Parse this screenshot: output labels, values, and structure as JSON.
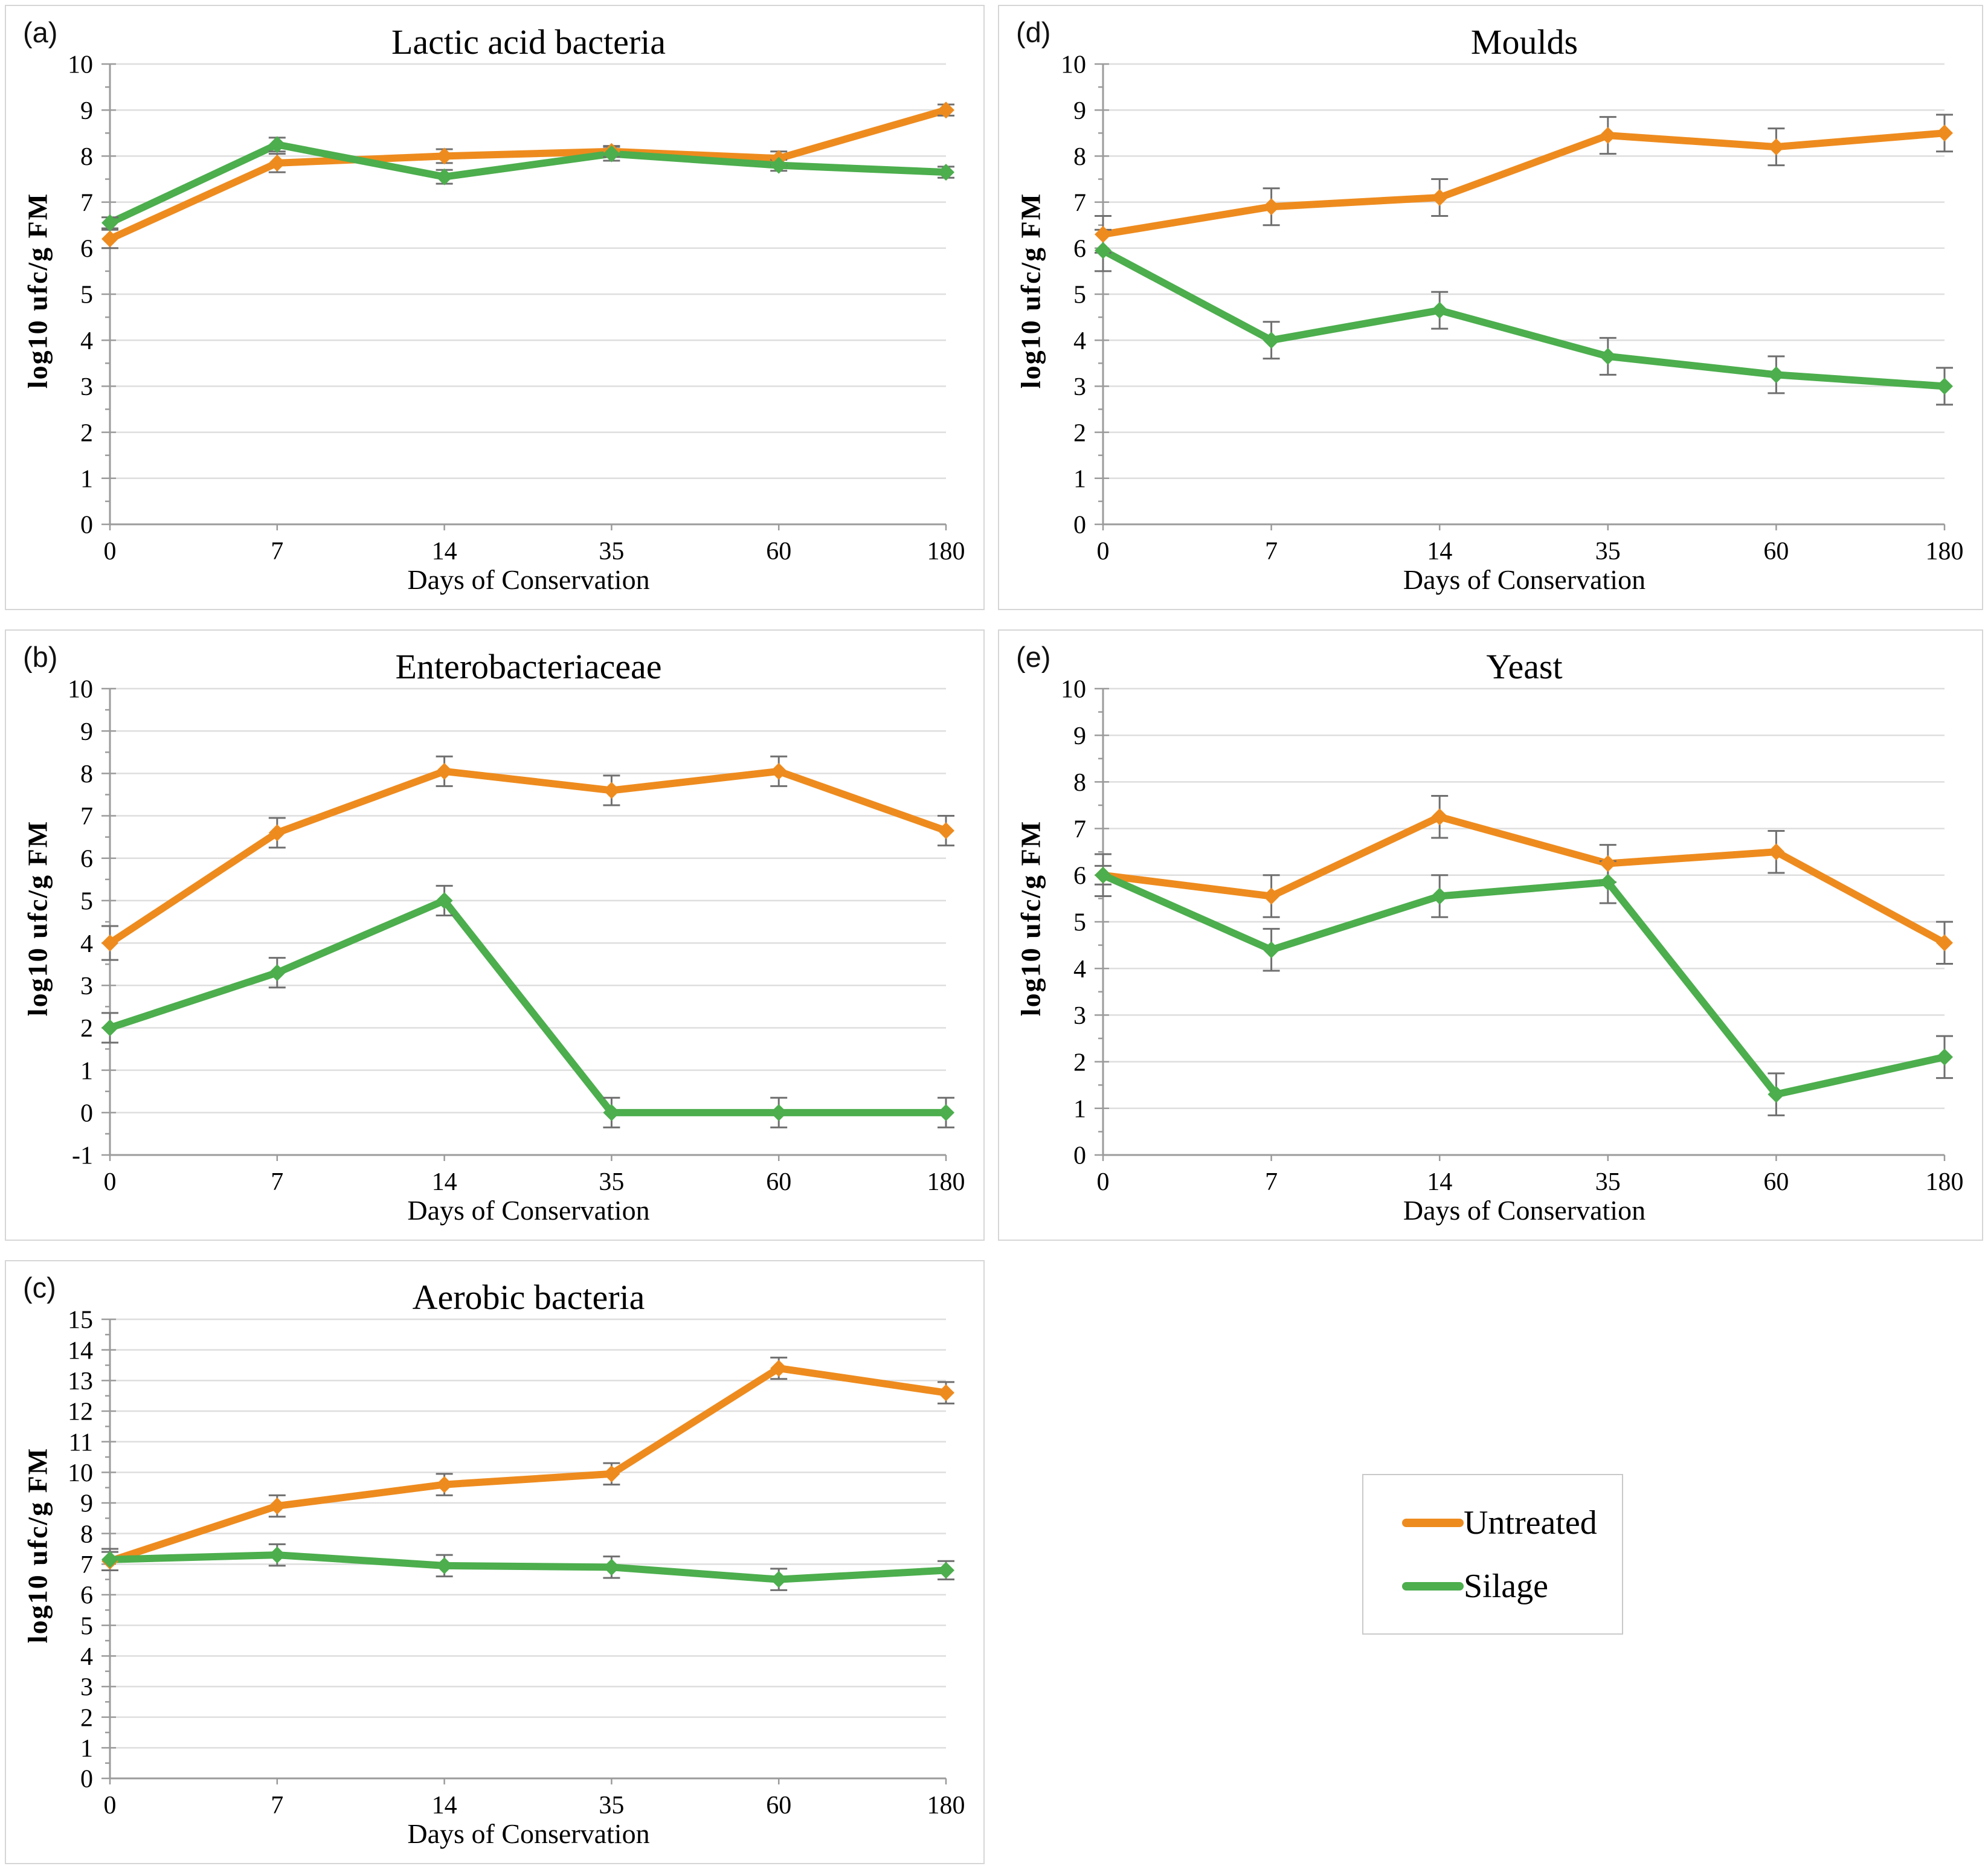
{
  "figure": {
    "colors": {
      "grid": "#dedede",
      "axis": "#9b9b9b",
      "error_bar": "#6f6f6f"
    },
    "legend": {
      "position": "bottom-right",
      "items": [
        {
          "label": "Untreated",
          "color": "#EE8B1E"
        },
        {
          "label": "Silage",
          "color": "#4CAE4D"
        }
      ]
    }
  },
  "chart_data": [
    {
      "id": "a",
      "panel_label": "(a)",
      "title": "Lactic acid bacteria",
      "type": "line",
      "xlabel": "Days of Conservation",
      "ylabel": "log10 ufc/g FM",
      "categories": [
        "0",
        "7",
        "14",
        "35",
        "60",
        "180"
      ],
      "ylim": [
        0,
        10
      ],
      "yticks": [
        0,
        1,
        2,
        3,
        4,
        5,
        6,
        7,
        8,
        9,
        10
      ],
      "grid": true,
      "marker": "diamond",
      "series": [
        {
          "name": "Untreated",
          "color": "#EE8B1E",
          "values": [
            6.2,
            7.85,
            8.0,
            8.1,
            7.95,
            9.0
          ],
          "errors": [
            0.2,
            0.2,
            0.15,
            0.12,
            0.15,
            0.12
          ]
        },
        {
          "name": "Silage",
          "color": "#4CAE4D",
          "values": [
            6.55,
            8.25,
            7.55,
            8.05,
            7.8,
            7.65
          ],
          "errors": [
            0.12,
            0.15,
            0.15,
            0.15,
            0.12,
            0.12
          ]
        }
      ]
    },
    {
      "id": "b",
      "panel_label": "(b)",
      "title": "Enterobacteriaceae",
      "type": "line",
      "xlabel": "Days of Conservation",
      "ylabel": "log10 ufc/g FM",
      "categories": [
        "0",
        "7",
        "14",
        "35",
        "60",
        "180"
      ],
      "ylim": [
        -1,
        10
      ],
      "yticks": [
        -1,
        0,
        1,
        2,
        3,
        4,
        5,
        6,
        7,
        8,
        9,
        10
      ],
      "grid": true,
      "marker": "diamond",
      "series": [
        {
          "name": "Untreated",
          "color": "#EE8B1E",
          "values": [
            4.0,
            6.6,
            8.05,
            7.6,
            8.05,
            6.65
          ],
          "errors": [
            0.4,
            0.35,
            0.35,
            0.35,
            0.35,
            0.35
          ]
        },
        {
          "name": "Silage",
          "color": "#4CAE4D",
          "values": [
            2.0,
            3.3,
            5.0,
            0.0,
            0.0,
            0.0
          ],
          "errors": [
            0.35,
            0.35,
            0.35,
            0.35,
            0.35,
            0.35
          ]
        }
      ]
    },
    {
      "id": "c",
      "panel_label": "(c)",
      "title": "Aerobic bacteria",
      "type": "line",
      "xlabel": "Days of Conservation",
      "ylabel": "log10 ufc/g FM",
      "categories": [
        "0",
        "7",
        "14",
        "35",
        "60",
        "180"
      ],
      "ylim": [
        0,
        15
      ],
      "yticks": [
        0,
        1,
        2,
        3,
        4,
        5,
        6,
        7,
        8,
        9,
        10,
        11,
        12,
        13,
        14,
        15
      ],
      "grid": true,
      "marker": "diamond",
      "series": [
        {
          "name": "Untreated",
          "color": "#EE8B1E",
          "values": [
            7.1,
            8.9,
            9.6,
            9.95,
            13.4,
            12.6
          ],
          "errors": [
            0.3,
            0.35,
            0.35,
            0.35,
            0.35,
            0.35
          ]
        },
        {
          "name": "Silage",
          "color": "#4CAE4D",
          "values": [
            7.15,
            7.3,
            6.95,
            6.9,
            6.5,
            6.8
          ],
          "errors": [
            0.35,
            0.35,
            0.35,
            0.35,
            0.35,
            0.3
          ]
        }
      ]
    },
    {
      "id": "d",
      "panel_label": "(d)",
      "title": "Moulds",
      "type": "line",
      "xlabel": "Days of Conservation",
      "ylabel": "log10 ufc/g FM",
      "categories": [
        "0",
        "7",
        "14",
        "35",
        "60",
        "180"
      ],
      "ylim": [
        0,
        10
      ],
      "yticks": [
        0,
        1,
        2,
        3,
        4,
        5,
        6,
        7,
        8,
        9,
        10
      ],
      "grid": true,
      "marker": "diamond",
      "series": [
        {
          "name": "Untreated",
          "color": "#EE8B1E",
          "values": [
            6.3,
            6.9,
            7.1,
            8.45,
            8.2,
            8.5
          ],
          "errors": [
            0.4,
            0.4,
            0.4,
            0.4,
            0.4,
            0.4
          ]
        },
        {
          "name": "Silage",
          "color": "#4CAE4D",
          "values": [
            5.95,
            4.0,
            4.65,
            3.65,
            3.25,
            3.0
          ],
          "errors": [
            0.45,
            0.4,
            0.4,
            0.4,
            0.4,
            0.4
          ]
        }
      ]
    },
    {
      "id": "e",
      "panel_label": "(e)",
      "title": "Yeast",
      "type": "line",
      "xlabel": "Days of Conservation",
      "ylabel": "log10 ufc/g FM",
      "categories": [
        "0",
        "7",
        "14",
        "35",
        "60",
        "180"
      ],
      "ylim": [
        0,
        10
      ],
      "yticks": [
        0,
        1,
        2,
        3,
        4,
        5,
        6,
        7,
        8,
        9,
        10
      ],
      "grid": true,
      "marker": "diamond",
      "series": [
        {
          "name": "Untreated",
          "color": "#EE8B1E",
          "values": [
            6.0,
            5.55,
            7.25,
            6.25,
            6.5,
            4.55
          ],
          "errors": [
            0.45,
            0.45,
            0.45,
            0.4,
            0.45,
            0.45
          ]
        },
        {
          "name": "Silage",
          "color": "#4CAE4D",
          "values": [
            6.0,
            4.4,
            5.55,
            5.85,
            1.3,
            2.1
          ],
          "errors": [
            0.2,
            0.45,
            0.45,
            0.45,
            0.45,
            0.45
          ]
        }
      ]
    }
  ]
}
